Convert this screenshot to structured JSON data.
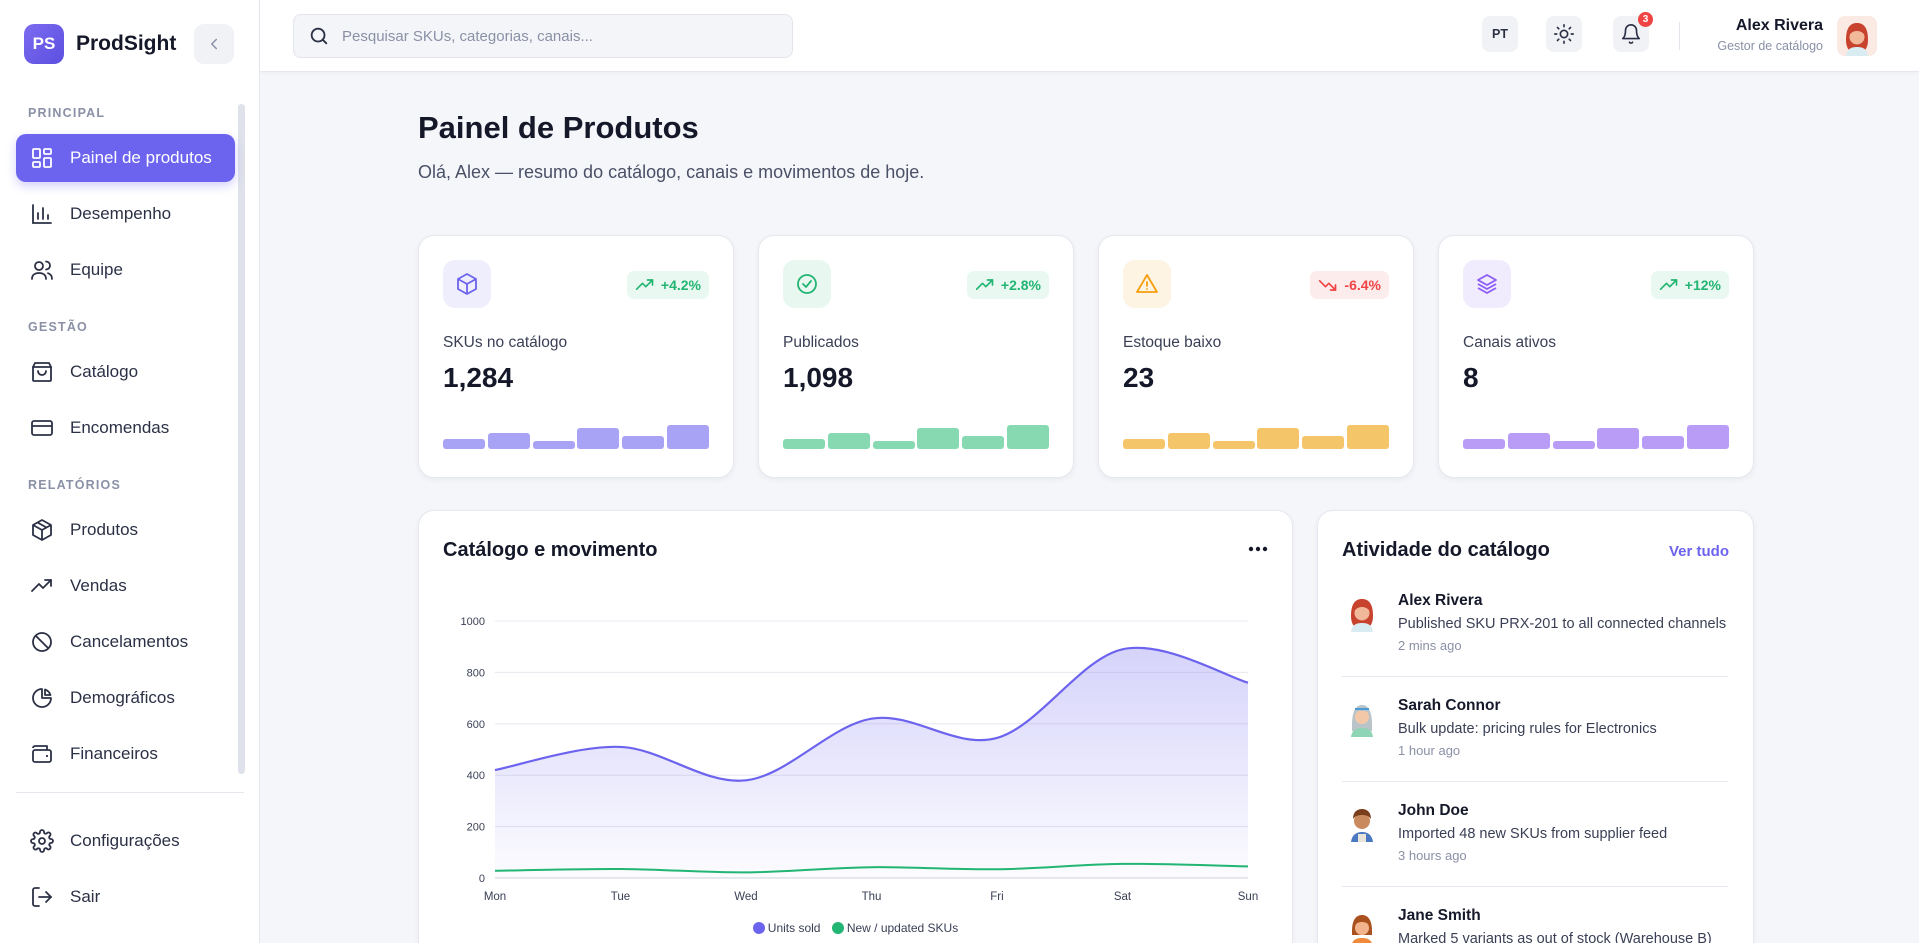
{
  "brand": {
    "logo": "PS",
    "name": "ProdSight"
  },
  "sidebar": {
    "sections": [
      {
        "label": "PRINCIPAL",
        "items": [
          {
            "label": "Painel de produtos",
            "icon": "dashboard-icon",
            "active": true
          },
          {
            "label": "Desempenho",
            "icon": "bar-chart-icon"
          },
          {
            "label": "Equipe",
            "icon": "users-icon"
          }
        ]
      },
      {
        "label": "GESTÃO",
        "items": [
          {
            "label": "Catálogo",
            "icon": "shopping-bag-icon"
          },
          {
            "label": "Encomendas",
            "icon": "credit-card-icon"
          }
        ]
      },
      {
        "label": "RELATÓRIOS",
        "items": [
          {
            "label": "Produtos",
            "icon": "package-icon"
          },
          {
            "label": "Vendas",
            "icon": "trending-up-icon"
          },
          {
            "label": "Cancelamentos",
            "icon": "ban-icon"
          },
          {
            "label": "Demográficos",
            "icon": "pie-chart-icon"
          },
          {
            "label": "Financeiros",
            "icon": "wallet-icon"
          }
        ]
      }
    ],
    "bottom": [
      {
        "label": "Configurações",
        "icon": "gear-icon"
      },
      {
        "label": "Sair",
        "icon": "logout-icon"
      }
    ]
  },
  "header": {
    "search_placeholder": "Pesquisar SKUs, categorias, canais...",
    "language": "PT",
    "notifications_count": "3",
    "user": {
      "name": "Alex Rivera",
      "role": "Gestor de catálogo"
    }
  },
  "page": {
    "title": "Painel de Produtos",
    "subtitle": "Olá, Alex — resumo do catálogo, canais e movimentos de hoje."
  },
  "stats": [
    {
      "label": "SKUs no catálogo",
      "value": "1,284",
      "trend": "+4.2%",
      "direction": "up",
      "icon": "box-icon",
      "icon_color": "#6c63ee",
      "icon_bg": "#efeefd",
      "bar_color": "#a9a3f5",
      "bars": [
        0.33,
        0.53,
        0.27,
        0.7,
        0.43,
        0.8
      ]
    },
    {
      "label": "Publicados",
      "value": "1,098",
      "trend": "+2.8%",
      "direction": "up",
      "icon": "check-circle-icon",
      "icon_color": "#22b573",
      "icon_bg": "#e8f7ef",
      "bar_color": "#86d9b0",
      "bars": [
        0.33,
        0.53,
        0.27,
        0.7,
        0.43,
        0.8
      ]
    },
    {
      "label": "Estoque baixo",
      "value": "23",
      "trend": "-6.4%",
      "direction": "down",
      "icon": "warning-icon",
      "icon_color": "#f59e0b",
      "icon_bg": "#fef4e4",
      "bar_color": "#f5c56a",
      "bars": [
        0.33,
        0.53,
        0.27,
        0.7,
        0.43,
        0.8
      ]
    },
    {
      "label": "Canais ativos",
      "value": "8",
      "trend": "+12%",
      "direction": "up",
      "icon": "layers-icon",
      "icon_color": "#8b5cf6",
      "icon_bg": "#f1ecfd",
      "bar_color": "#b99cf5",
      "bars": [
        0.33,
        0.53,
        0.27,
        0.7,
        0.43,
        0.8
      ]
    }
  ],
  "chart_panel": {
    "title": "Catálogo e movimento"
  },
  "chart_data": {
    "type": "area",
    "categories": [
      "Mon",
      "Tue",
      "Wed",
      "Thu",
      "Fri",
      "Sat",
      "Sun"
    ],
    "ylim": [
      0,
      1000
    ],
    "yticks": [
      0,
      200,
      400,
      600,
      800,
      1000
    ],
    "series": [
      {
        "name": "Units sold",
        "color": "#6c63ee",
        "values": [
          420,
          510,
          380,
          620,
          545,
          890,
          760
        ]
      },
      {
        "name": "New / updated SKUs",
        "color": "#22b573",
        "values": [
          28,
          35,
          22,
          42,
          34,
          55,
          45
        ]
      }
    ],
    "grid": true,
    "legend": "bottom-center"
  },
  "activity": {
    "title": "Atividade do catálogo",
    "view_all": "Ver tudo",
    "items": [
      {
        "name": "Alex Rivera",
        "desc": "Published SKU PRX-201 to all connected channels",
        "time": "2 mins ago",
        "avatar": "avatar-red-hair"
      },
      {
        "name": "Sarah Connor",
        "desc": "Bulk update: pricing rules for Electronics",
        "time": "1 hour ago",
        "avatar": "avatar-gray-hair"
      },
      {
        "name": "John Doe",
        "desc": "Imported 48 new SKUs from supplier feed",
        "time": "3 hours ago",
        "avatar": "avatar-brown-hair"
      },
      {
        "name": "Jane Smith",
        "desc": "Marked 5 variants as out of stock (Warehouse B)",
        "time": "",
        "avatar": "avatar-bob-hair"
      }
    ]
  }
}
